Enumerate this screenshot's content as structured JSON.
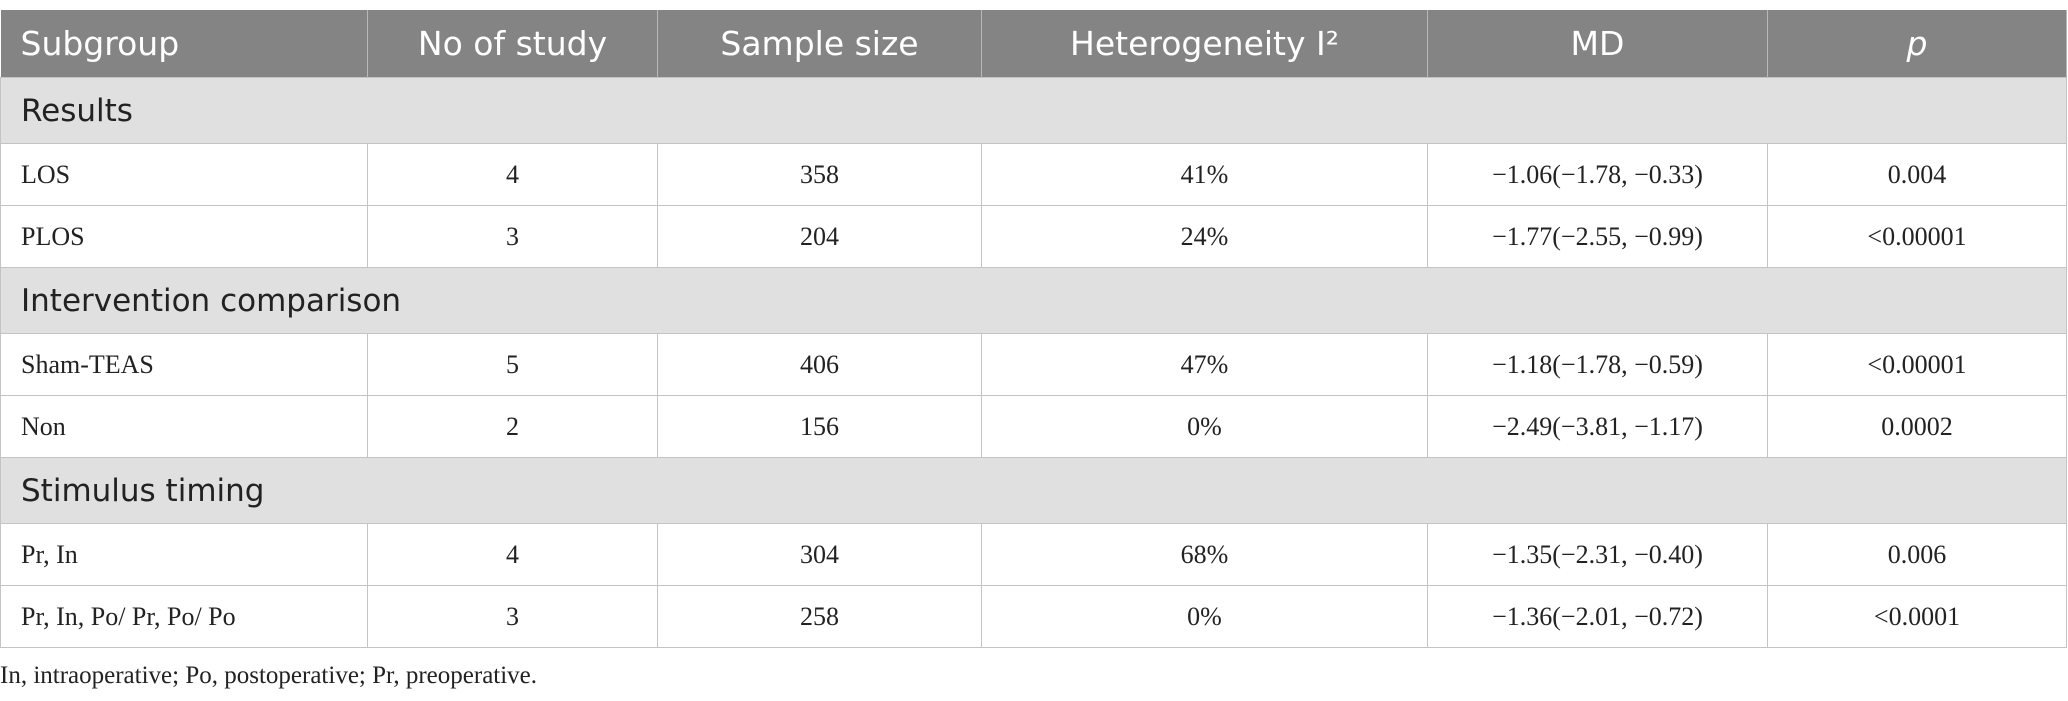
{
  "table": {
    "header": [
      "Subgroup",
      "No of study",
      "Sample size",
      "Heterogeneity I²",
      "MD",
      "p"
    ],
    "sections": [
      {
        "title": "Results",
        "rows": [
          [
            "LOS",
            "4",
            "358",
            "41%",
            "−1.06(−1.78, −0.33)",
            "0.004"
          ],
          [
            "PLOS",
            "3",
            "204",
            "24%",
            "−1.77(−2.55, −0.99)",
            "<0.00001"
          ]
        ]
      },
      {
        "title": "Intervention comparison",
        "rows": [
          [
            "Sham-TEAS",
            "5",
            "406",
            "47%",
            "−1.18(−1.78, −0.59)",
            "<0.00001"
          ],
          [
            "Non",
            "2",
            "156",
            "0%",
            "−2.49(−3.81, −1.17)",
            "0.0002"
          ]
        ]
      },
      {
        "title": "Stimulus timing",
        "rows": [
          [
            "Pr, In",
            "4",
            "304",
            "68%",
            "−1.35(−2.31, −0.40)",
            "0.006"
          ],
          [
            "Pr, In, Po/ Pr, Po/ Po",
            "3",
            "258",
            "0%",
            "−1.36(−2.01, −0.72)",
            "<0.0001"
          ]
        ]
      }
    ]
  },
  "footnote": "In, intraoperative; Po, postoperative; Pr, preoperative."
}
